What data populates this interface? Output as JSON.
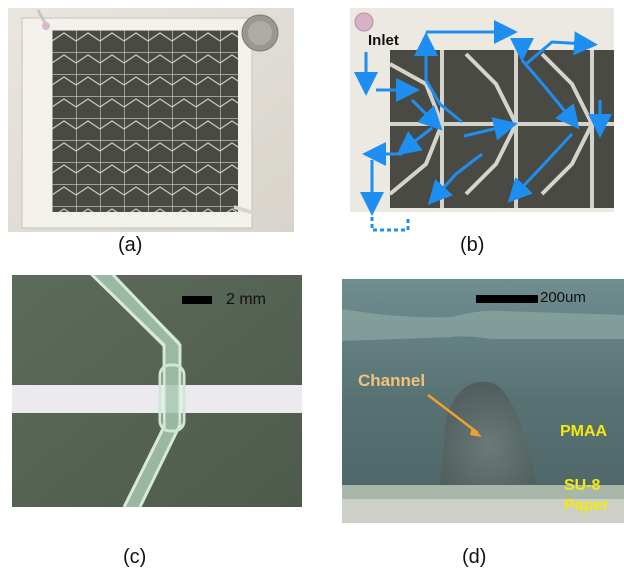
{
  "captions": {
    "a": "(a)",
    "b": "(b)",
    "c": "(c)",
    "d": "(d)"
  },
  "panel_b": {
    "inlet_label": "Inlet"
  },
  "panel_c": {
    "scale_label": "2 mm"
  },
  "panel_d": {
    "scale_label": "200um",
    "channel_label": "Channel",
    "pmaa_label": "PMAA",
    "su8_label": "SU-8",
    "paper_label": "Paper"
  },
  "colors": {
    "flow_arrow": "#1e8ff0",
    "channel_text": "#f6c27a",
    "layer_text": "#f3ea10"
  }
}
